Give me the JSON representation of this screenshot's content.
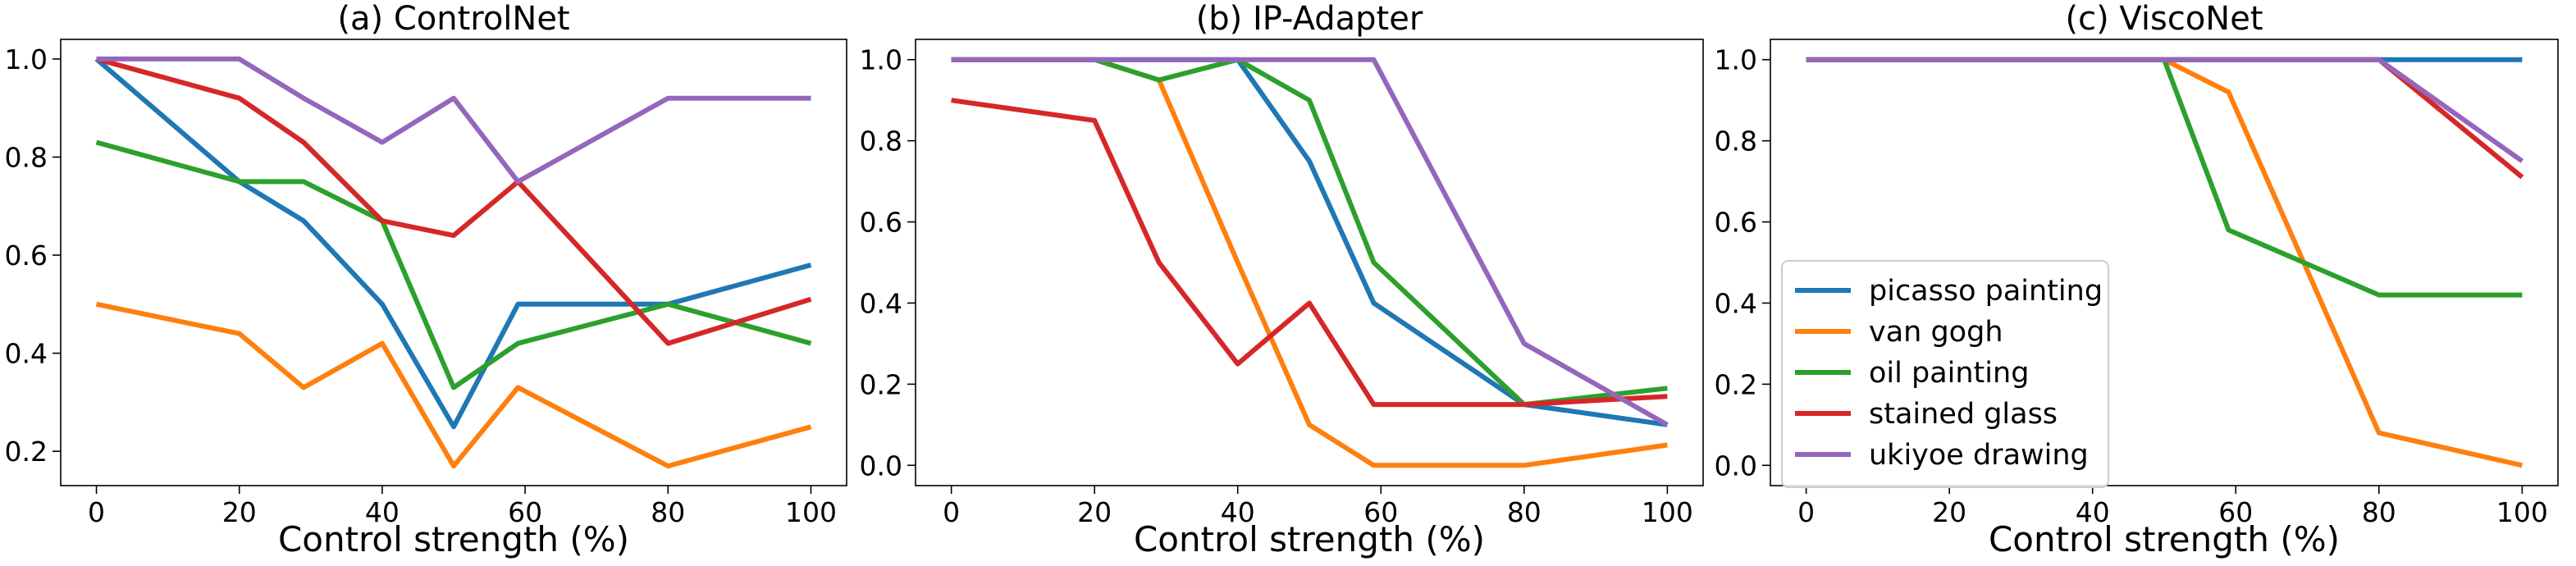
{
  "chart_data": [
    {
      "type": "line",
      "title": "(a) ControlNet",
      "xlabel": "Control strength (%)",
      "ylabel": "",
      "xlim": [
        -5,
        105
      ],
      "ylim": [
        0.13,
        1.04
      ],
      "xticks": [
        0,
        20,
        40,
        60,
        80,
        100
      ],
      "yticks": [
        0.2,
        0.4,
        0.6,
        0.8,
        1.0
      ],
      "x": [
        0,
        20,
        29,
        40,
        50,
        59,
        80,
        100
      ],
      "series": [
        {
          "name": "picasso painting",
          "color": "#1f77b4",
          "values": [
            1.0,
            0.75,
            0.67,
            0.5,
            0.25,
            0.5,
            0.5,
            0.58
          ]
        },
        {
          "name": "van gogh",
          "color": "#ff7f0e",
          "values": [
            0.5,
            0.44,
            0.33,
            0.42,
            0.17,
            0.33,
            0.17,
            0.25
          ]
        },
        {
          "name": "oil painting",
          "color": "#2ca02c",
          "values": [
            0.83,
            0.75,
            0.75,
            0.67,
            0.33,
            0.42,
            0.5,
            0.42
          ]
        },
        {
          "name": "stained glass",
          "color": "#d62728",
          "values": [
            1.0,
            0.92,
            0.83,
            0.67,
            0.64,
            0.75,
            0.42,
            0.51
          ]
        },
        {
          "name": "ukiyoe drawing",
          "color": "#9467bd",
          "values": [
            1.0,
            1.0,
            0.92,
            0.83,
            0.92,
            0.75,
            0.92,
            0.92
          ]
        }
      ]
    },
    {
      "type": "line",
      "title": "(b) IP-Adapter",
      "xlabel": "Control strength (%)",
      "ylabel": "",
      "xlim": [
        -5,
        105
      ],
      "ylim": [
        -0.05,
        1.05
      ],
      "xticks": [
        0,
        20,
        40,
        60,
        80,
        100
      ],
      "yticks": [
        0.0,
        0.2,
        0.4,
        0.6,
        0.8,
        1.0
      ],
      "x": [
        0,
        20,
        29,
        40,
        50,
        59,
        80,
        100
      ],
      "series": [
        {
          "name": "picasso painting",
          "color": "#1f77b4",
          "values": [
            1.0,
            1.0,
            1.0,
            1.0,
            0.75,
            0.4,
            0.15,
            0.1
          ]
        },
        {
          "name": "van gogh",
          "color": "#ff7f0e",
          "values": [
            1.0,
            1.0,
            0.95,
            0.5,
            0.1,
            0.0,
            0.0,
            0.05
          ]
        },
        {
          "name": "oil painting",
          "color": "#2ca02c",
          "values": [
            1.0,
            1.0,
            0.95,
            1.0,
            0.9,
            0.5,
            0.15,
            0.19
          ]
        },
        {
          "name": "stained glass",
          "color": "#d62728",
          "values": [
            0.9,
            0.85,
            0.5,
            0.25,
            0.4,
            0.15,
            0.15,
            0.17
          ]
        },
        {
          "name": "ukiyoe drawing",
          "color": "#9467bd",
          "values": [
            1.0,
            1.0,
            1.0,
            1.0,
            1.0,
            1.0,
            0.3,
            0.1
          ]
        }
      ]
    },
    {
      "type": "line",
      "title": "(c) ViscoNet",
      "xlabel": "Control strength (%)",
      "ylabel": "",
      "xlim": [
        -5,
        105
      ],
      "ylim": [
        -0.05,
        1.05
      ],
      "xticks": [
        0,
        20,
        40,
        60,
        80,
        100
      ],
      "yticks": [
        0.0,
        0.2,
        0.4,
        0.6,
        0.8,
        1.0
      ],
      "legend": "center-left",
      "x": [
        0,
        20,
        29,
        40,
        50,
        59,
        80,
        100
      ],
      "series": [
        {
          "name": "picasso painting",
          "color": "#1f77b4",
          "values": [
            1.0,
            1.0,
            1.0,
            1.0,
            1.0,
            1.0,
            1.0,
            1.0
          ]
        },
        {
          "name": "van gogh",
          "color": "#ff7f0e",
          "values": [
            1.0,
            1.0,
            1.0,
            1.0,
            1.0,
            0.92,
            0.08,
            0.0
          ]
        },
        {
          "name": "oil painting",
          "color": "#2ca02c",
          "values": [
            1.0,
            1.0,
            1.0,
            1.0,
            1.0,
            0.58,
            0.42,
            0.42
          ]
        },
        {
          "name": "stained glass",
          "color": "#d62728",
          "values": [
            1.0,
            1.0,
            1.0,
            1.0,
            1.0,
            1.0,
            1.0,
            0.71
          ]
        },
        {
          "name": "ukiyoe drawing",
          "color": "#9467bd",
          "values": [
            1.0,
            1.0,
            1.0,
            1.0,
            1.0,
            1.0,
            1.0,
            0.75
          ]
        }
      ]
    }
  ]
}
